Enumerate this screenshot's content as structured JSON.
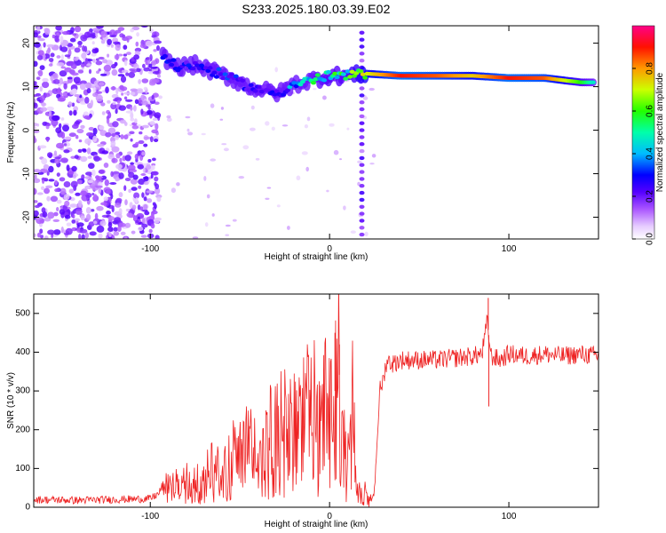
{
  "title": "S233.2025.180.03.39.E02",
  "chart_data": [
    {
      "type": "heatmap",
      "xlabel": "Height of straight line (km)",
      "ylabel": "Frequency (Hz)",
      "xlim": [
        -165,
        150
      ],
      "ylim": [
        -25,
        24
      ],
      "x_ticks": [
        -100,
        0,
        100
      ],
      "y_ticks": [
        -20,
        -10,
        0,
        10,
        20
      ],
      "colorbar": {
        "label": "Normalized spectral amplitude",
        "range": [
          0,
          1
        ],
        "ticks": [
          0.0,
          0.2,
          0.4,
          0.6,
          0.8
        ],
        "colormap": [
          "#ffffff",
          "#cc99ff",
          "#7700ee",
          "#0000ff",
          "#00ccff",
          "#00ff66",
          "#ccff00",
          "#ff8800",
          "#ff0000",
          "#ff0088"
        ]
      },
      "ridge": {
        "x": [
          -93,
          -85,
          -75,
          -65,
          -55,
          -45,
          -35,
          -28,
          -20,
          -10,
          0,
          10,
          20,
          40,
          60,
          80,
          100,
          120,
          140,
          148
        ],
        "frequency": [
          17,
          14.5,
          15,
          13.5,
          12,
          10,
          9,
          8.5,
          10.5,
          11.5,
          12.5,
          12.5,
          13,
          12.5,
          12.5,
          12.5,
          12,
          12,
          11,
          11
        ],
        "amplitude": [
          0.3,
          0.3,
          0.25,
          0.3,
          0.3,
          0.25,
          0.25,
          0.25,
          0.4,
          0.5,
          0.55,
          0.55,
          0.7,
          0.9,
          0.85,
          0.75,
          0.9,
          0.85,
          0.6,
          0.45
        ]
      },
      "noise_region_x": [
        -165,
        -95
      ],
      "vertical_stripe_x": 18
    },
    {
      "type": "line",
      "xlabel": "Height of straight line (km)",
      "ylabel": "SNR (10 * v/v)",
      "xlim": [
        -165,
        150
      ],
      "ylim": [
        0,
        550
      ],
      "x_ticks": [
        -100,
        0,
        100
      ],
      "y_ticks": [
        0,
        100,
        200,
        300,
        400,
        500
      ],
      "color": "#ee2222",
      "series": [
        {
          "x": [
            -165,
            -140,
            -120,
            -100,
            -90,
            -80,
            -70,
            -60,
            -50,
            -40,
            -30,
            -20,
            -10,
            -5,
            0,
            3,
            5,
            8,
            10,
            12,
            15,
            18,
            20,
            22,
            25,
            28,
            30,
            32,
            35,
            40,
            50,
            60,
            70,
            80,
            85,
            88,
            90,
            95,
            100,
            110,
            120,
            130,
            140,
            150
          ],
          "y": [
            20,
            18,
            20,
            22,
            50,
            60,
            80,
            100,
            130,
            150,
            180,
            200,
            230,
            250,
            260,
            300,
            380,
            150,
            60,
            300,
            50,
            40,
            35,
            10,
            40,
            300,
            330,
            380,
            370,
            380,
            380,
            380,
            385,
            390,
            395,
            480,
            390,
            380,
            395,
            390,
            395,
            390,
            395,
            390
          ]
        }
      ]
    }
  ]
}
